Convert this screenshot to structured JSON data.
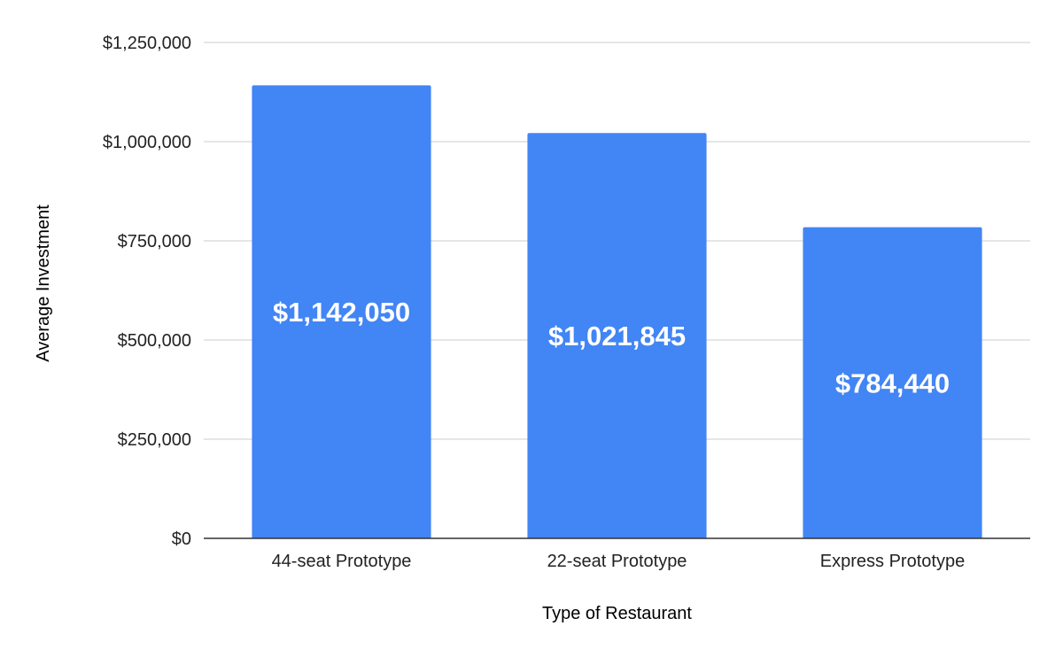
{
  "chart_data": {
    "type": "bar",
    "title": "",
    "xlabel": "Type of Restaurant",
    "ylabel": "Average Investment",
    "categories": [
      "44-seat Prototype",
      "22-seat Prototype",
      "Express Prototype"
    ],
    "values": [
      1142050,
      1021845,
      784440
    ],
    "data_labels": [
      "$1,142,050",
      "$1,021,845",
      "$784,440"
    ],
    "ylim": [
      0,
      1250000
    ],
    "yticks": [
      0,
      250000,
      500000,
      750000,
      1000000,
      1250000
    ],
    "ytick_labels": [
      "$0",
      "$250,000",
      "$500,000",
      "$750,000",
      "$1,000,000",
      "$1,250,000"
    ],
    "grid": true,
    "legend": "none",
    "colors": {
      "bar": "#4285f4",
      "grid": "#cccccc",
      "baseline": "#333333",
      "data_label": "#ffffff"
    }
  }
}
